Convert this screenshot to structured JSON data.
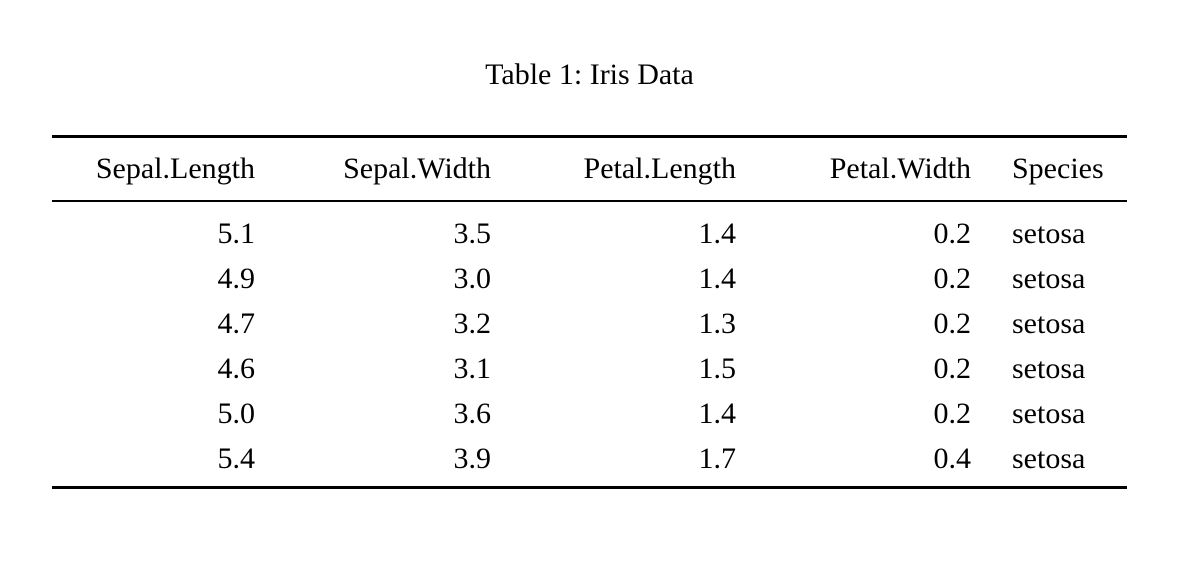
{
  "caption": {
    "text": "Table 1: Iris Data"
  },
  "table": {
    "columns": [
      {
        "label": "Sepal.Length",
        "align": "right"
      },
      {
        "label": "Sepal.Width",
        "align": "right"
      },
      {
        "label": "Petal.Length",
        "align": "right"
      },
      {
        "label": "Petal.Width",
        "align": "right"
      },
      {
        "label": "Species",
        "align": "left"
      }
    ],
    "rows": [
      [
        "5.1",
        "3.5",
        "1.4",
        "0.2",
        "setosa"
      ],
      [
        "4.9",
        "3.0",
        "1.4",
        "0.2",
        "setosa"
      ],
      [
        "4.7",
        "3.2",
        "1.3",
        "0.2",
        "setosa"
      ],
      [
        "4.6",
        "3.1",
        "1.5",
        "0.2",
        "setosa"
      ],
      [
        "5.0",
        "3.6",
        "1.4",
        "0.2",
        "setosa"
      ],
      [
        "5.4",
        "3.9",
        "1.7",
        "0.4",
        "setosa"
      ]
    ]
  },
  "colors": {
    "background": "#ffffff",
    "text": "#000000",
    "rule": "#000000"
  }
}
